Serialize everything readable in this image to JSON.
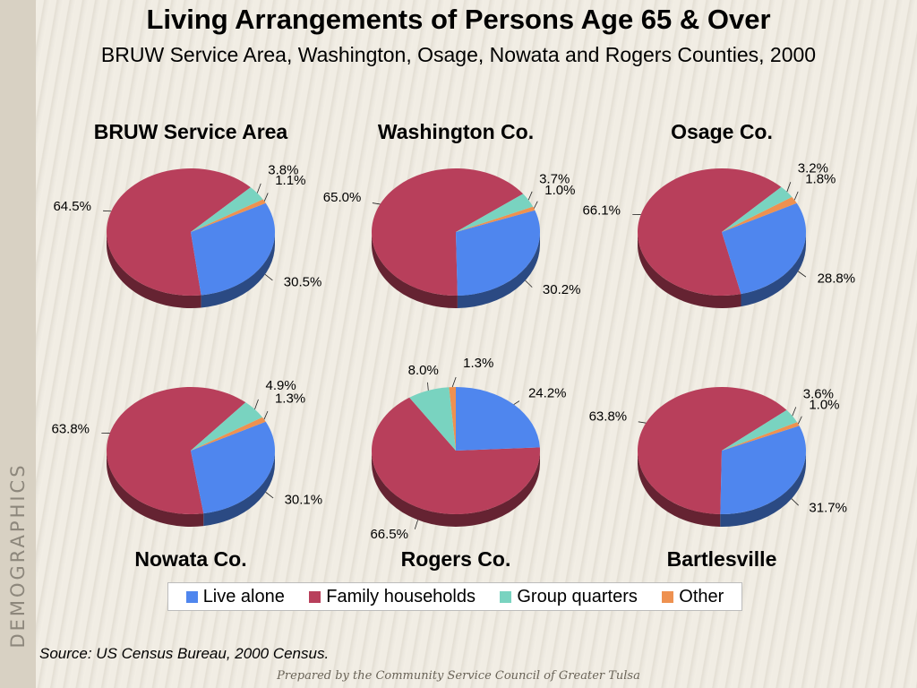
{
  "side_label": "DEMOGRAPHICS",
  "title": "Living Arrangements of Persons Age 65 & Over",
  "subtitle": "BRUW Service Area, Washington, Osage, Nowata and Rogers Counties, 2000",
  "source": "Source:  US Census Bureau, 2000 Census.",
  "footer": "Prepared by the Community Service Council of Greater Tulsa",
  "legend": [
    {
      "label": "Live alone",
      "color": "#4f86ee"
    },
    {
      "label": "Family households",
      "color": "#b83f5b"
    },
    {
      "label": "Group quarters",
      "color": "#79d3c0"
    },
    {
      "label": "Other",
      "color": "#ee9150"
    }
  ],
  "chart_data": [
    {
      "type": "pie",
      "title": "BRUW Service Area",
      "categories": [
        "Live alone",
        "Family households",
        "Group quarters",
        "Other"
      ],
      "values": [
        30.5,
        64.5,
        3.8,
        1.1
      ],
      "labels": [
        "30.5%",
        "64.5%",
        "3.8%",
        "1.1%"
      ]
    },
    {
      "type": "pie",
      "title": "Washington Co.",
      "categories": [
        "Live alone",
        "Family households",
        "Group quarters",
        "Other"
      ],
      "values": [
        30.2,
        65.0,
        3.7,
        1.0
      ],
      "labels": [
        "30.2%",
        "65.0%",
        "3.7%",
        "1.0%"
      ]
    },
    {
      "type": "pie",
      "title": "Osage Co.",
      "categories": [
        "Live alone",
        "Family households",
        "Group quarters",
        "Other"
      ],
      "values": [
        28.8,
        66.1,
        3.2,
        1.8
      ],
      "labels": [
        "28.8%",
        "66.1%",
        "3.2%",
        "1.8%"
      ]
    },
    {
      "type": "pie",
      "title": "Nowata Co.",
      "categories": [
        "Live alone",
        "Family households",
        "Group quarters",
        "Other"
      ],
      "values": [
        30.1,
        63.8,
        4.9,
        1.3
      ],
      "labels": [
        "30.1%",
        "63.8%",
        "4.9%",
        "1.3%"
      ]
    },
    {
      "type": "pie",
      "title": "Rogers Co.",
      "categories": [
        "Live alone",
        "Family households",
        "Group quarters",
        "Other"
      ],
      "values": [
        24.2,
        66.5,
        8.0,
        1.3
      ],
      "labels": [
        "24.2%",
        "66.5%",
        "8.0%",
        "1.3%"
      ]
    },
    {
      "type": "pie",
      "title": "Bartlesville",
      "categories": [
        "Live alone",
        "Family households",
        "Group quarters",
        "Other"
      ],
      "values": [
        31.7,
        63.8,
        3.6,
        1.0
      ],
      "labels": [
        "31.7%",
        "63.8%",
        "3.6%",
        "1.0%"
      ]
    }
  ]
}
